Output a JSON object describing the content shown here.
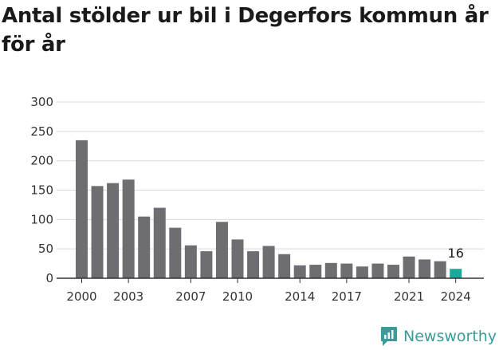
{
  "chart_data": {
    "type": "bar",
    "title": "Antal stölder ur bil i Degerfors kommun år för år",
    "categories": [
      2000,
      2001,
      2002,
      2003,
      2004,
      2005,
      2006,
      2007,
      2008,
      2009,
      2010,
      2011,
      2012,
      2013,
      2014,
      2015,
      2016,
      2017,
      2018,
      2019,
      2020,
      2021,
      2022,
      2023,
      2024
    ],
    "values": [
      235,
      157,
      162,
      168,
      105,
      120,
      86,
      56,
      46,
      96,
      66,
      46,
      55,
      41,
      22,
      23,
      26,
      25,
      20,
      25,
      23,
      37,
      32,
      29,
      16
    ],
    "x_tick_labels": [
      "2000",
      "2003",
      "2007",
      "2010",
      "2014",
      "2017",
      "2021",
      "2024"
    ],
    "y_ticks": [
      0,
      50,
      100,
      150,
      200,
      250,
      300
    ],
    "ylim": [
      0,
      300
    ],
    "grid": true,
    "highlight": {
      "category": 2024,
      "label": "16"
    },
    "colors": {
      "bar": "#6e6d72",
      "highlight": "#1aaa9b",
      "grid": "#d9d9d9",
      "axis": "#333333"
    }
  },
  "brand": {
    "name": "Newsworthy",
    "color": "#3a9b97"
  }
}
